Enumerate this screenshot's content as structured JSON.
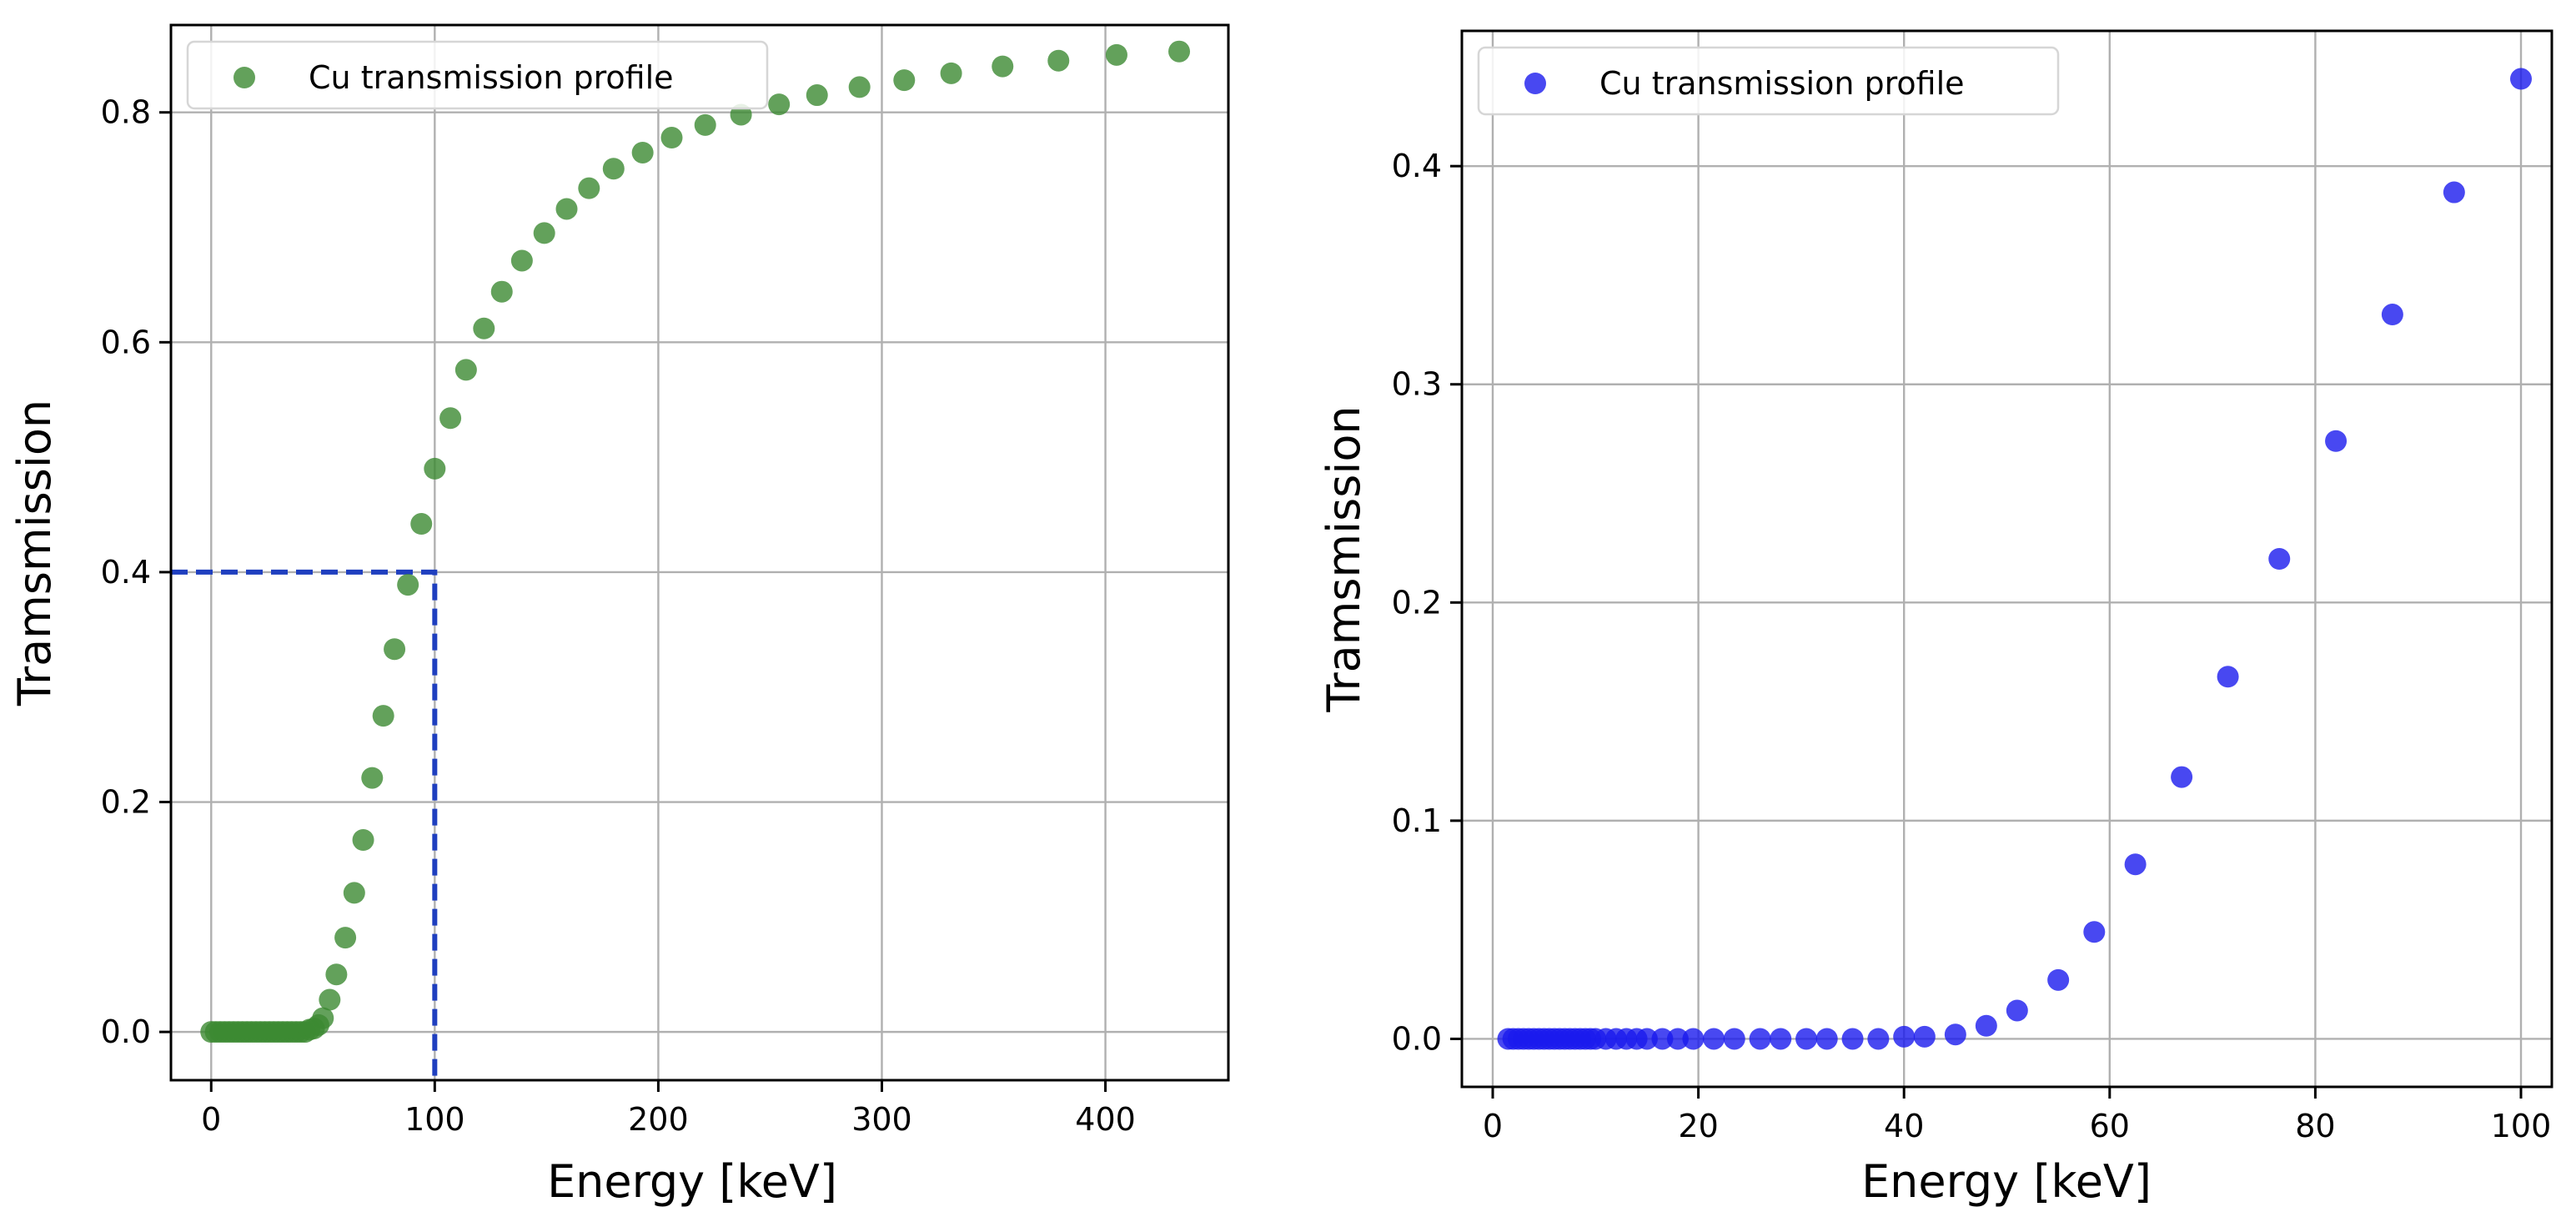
{
  "chart_data": [
    {
      "type": "scatter",
      "title": "",
      "xlabel": "Energy [keV]",
      "ylabel": "Tramsmission",
      "xlim": [
        -18,
        455
      ],
      "ylim": [
        -0.042,
        0.876
      ],
      "xticks": [
        0,
        100,
        200,
        300,
        400
      ],
      "yticks": [
        0.0,
        0.2,
        0.4,
        0.6,
        0.8
      ],
      "xtick_labels": [
        "0",
        "100",
        "200",
        "300",
        "400"
      ],
      "ytick_labels": [
        "0.0",
        "0.2",
        "0.4",
        "0.6",
        "0.8"
      ],
      "grid": true,
      "legend": {
        "position": "top-left",
        "entries": [
          "Cu transmission profile"
        ]
      },
      "series": [
        {
          "name": "Cu transmission profile",
          "color": "#3c8a32",
          "opacity": 0.8,
          "x": [
            0,
            2,
            4,
            6,
            8,
            10,
            12,
            14,
            16,
            18,
            20,
            22,
            24,
            26,
            28,
            30,
            32,
            34,
            36,
            38,
            40,
            42,
            44,
            46,
            48,
            50,
            53,
            56,
            60,
            64,
            68,
            72,
            77,
            82,
            88,
            94,
            100,
            107,
            114,
            122,
            130,
            139,
            149,
            159,
            169,
            180,
            193,
            206,
            221,
            237,
            254,
            271,
            290,
            310,
            331,
            354,
            379,
            405,
            433
          ],
          "y": [
            0.0,
            0.0,
            0.0,
            0.0,
            0.0,
            0.0,
            0.0,
            0.0,
            0.0,
            0.0,
            0.0,
            0.0,
            0.0,
            0.0,
            0.0,
            0.0,
            0.0,
            0.0,
            0.0,
            0.0,
            0.0,
            0.0,
            0.002,
            0.003,
            0.006,
            0.012,
            0.028,
            0.05,
            0.082,
            0.121,
            0.167,
            0.221,
            0.275,
            0.333,
            0.389,
            0.442,
            0.49,
            0.534,
            0.576,
            0.612,
            0.644,
            0.671,
            0.695,
            0.716,
            0.734,
            0.751,
            0.765,
            0.778,
            0.789,
            0.798,
            0.807,
            0.815,
            0.822,
            0.828,
            0.834,
            0.84,
            0.845,
            0.85,
            0.853
          ]
        }
      ],
      "annotations": [
        {
          "type": "dashed-line",
          "color": "#1f3fbf",
          "points": [
            [
              -18,
              0.4
            ],
            [
              100,
              0.4
            ],
            [
              100,
              -0.042
            ]
          ],
          "label": ""
        }
      ]
    },
    {
      "type": "scatter",
      "title": "",
      "xlabel": "Energy [keV]",
      "ylabel": "Tramsmission",
      "xlim": [
        -3,
        103
      ],
      "ylim": [
        -0.022,
        0.462
      ],
      "xticks": [
        0,
        20,
        40,
        60,
        80,
        100
      ],
      "yticks": [
        0.0,
        0.1,
        0.2,
        0.3,
        0.4
      ],
      "xtick_labels": [
        "0",
        "20",
        "40",
        "60",
        "80",
        "100"
      ],
      "ytick_labels": [
        "0.0",
        "0.1",
        "0.2",
        "0.3",
        "0.4"
      ],
      "grid": true,
      "legend": {
        "position": "top-left",
        "entries": [
          "Cu transmission profile"
        ]
      },
      "series": [
        {
          "name": "Cu transmission profile",
          "color": "#1a1aee",
          "opacity": 0.8,
          "x": [
            1.5,
            2.0,
            2.5,
            3.0,
            3.5,
            4.0,
            4.5,
            5.0,
            5.5,
            6.0,
            6.5,
            7.0,
            7.5,
            8.0,
            8.5,
            9.0,
            9.5,
            10.0,
            11.0,
            12.0,
            13.0,
            14.0,
            15.0,
            16.5,
            18.0,
            19.5,
            21.5,
            23.5,
            26.0,
            28.0,
            30.5,
            32.5,
            35.0,
            37.5,
            40.0,
            42.0,
            45.0,
            48.0,
            51.0,
            55.0,
            58.5,
            62.5,
            67.0,
            71.5,
            76.5,
            82.0,
            87.5,
            93.5,
            100.0
          ],
          "y": [
            0.0,
            0.0,
            0.0,
            0.0,
            0.0,
            0.0,
            0.0,
            0.0,
            0.0,
            0.0,
            0.0,
            0.0,
            0.0,
            0.0,
            0.0,
            0.0,
            0.0,
            0.0,
            0.0,
            0.0,
            0.0,
            0.0,
            0.0,
            0.0,
            0.0,
            0.0,
            0.0,
            0.0,
            0.0,
            0.0,
            0.0,
            0.0,
            0.0,
            0.0,
            0.001,
            0.001,
            0.002,
            0.006,
            0.013,
            0.027,
            0.049,
            0.08,
            0.12,
            0.166,
            0.22,
            0.274,
            0.332,
            0.388,
            0.44
          ]
        }
      ],
      "annotations": []
    }
  ]
}
